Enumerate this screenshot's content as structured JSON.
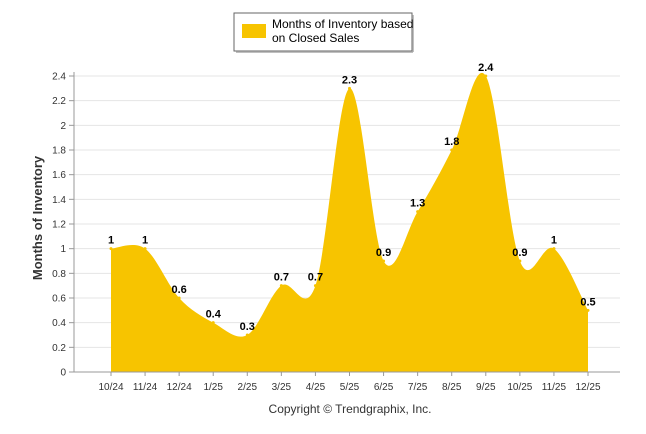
{
  "chart_data": {
    "type": "area",
    "categories": [
      "10/24",
      "11/24",
      "12/24",
      "1/25",
      "2/25",
      "3/25",
      "4/25",
      "5/25",
      "6/25",
      "7/25",
      "8/25",
      "9/25",
      "10/25",
      "11/25",
      "12/25"
    ],
    "series": [
      {
        "name": "Months of Inventory based on Closed Sales",
        "values": [
          1,
          1,
          0.6,
          0.4,
          0.3,
          0.7,
          0.7,
          2.3,
          0.9,
          1.3,
          1.8,
          2.4,
          0.9,
          1,
          0.5
        ],
        "data_labels": [
          "1",
          "1",
          "0.6",
          "0.4",
          "0.3",
          "0.7",
          "0.7",
          "2.3",
          "0.9",
          "1.3",
          "1.8",
          "2.4",
          "0.9",
          "1",
          "0.5"
        ],
        "color": "#F7C400"
      }
    ],
    "ylabel": "Months of Inventory",
    "ylim": [
      0,
      2.4
    ],
    "yticks": [
      0,
      0.2,
      0.4,
      0.6,
      0.8,
      1,
      1.2,
      1.4,
      1.6,
      1.8,
      2,
      2.2,
      2.4
    ],
    "ytick_labels": [
      "0",
      "0.2",
      "0.4",
      "0.6",
      "0.8",
      "1",
      "1.2",
      "1.4",
      "1.6",
      "1.8",
      "2",
      "2.2",
      "2.4"
    ],
    "grid": true,
    "legend_placement": "top-center",
    "legend_lines": [
      "Months of Inventory based",
      "on Closed Sales"
    ],
    "copyright": "Copyright © Trendgraphix, Inc."
  }
}
